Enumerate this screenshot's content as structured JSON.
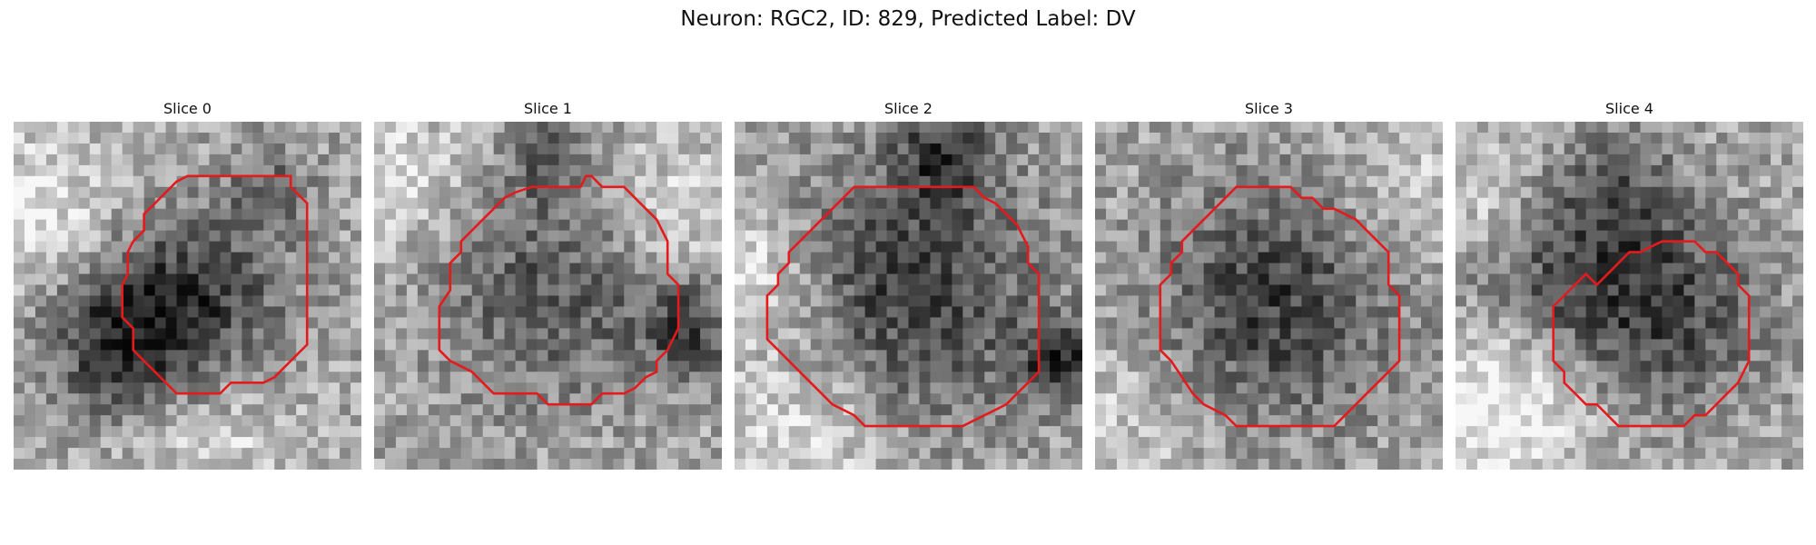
{
  "title": "Neuron: RGC2, ID: 829, Predicted Label: DV",
  "panels": [
    {
      "label": "Slice 0"
    },
    {
      "label": "Slice 1"
    },
    {
      "label": "Slice 2"
    },
    {
      "label": "Slice 3"
    },
    {
      "label": "Slice 4"
    }
  ],
  "colors": {
    "contour": "#e41a1c",
    "background": "#ffffff"
  }
}
